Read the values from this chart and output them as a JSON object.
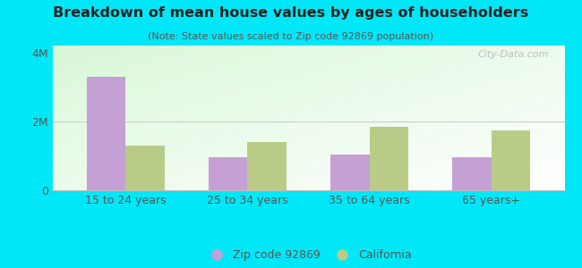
{
  "title": "Breakdown of mean house values by ages of householders",
  "subtitle": "(Note: State values scaled to Zip code 92869 population)",
  "categories": [
    "15 to 24 years",
    "25 to 34 years",
    "35 to 64 years",
    "65 years+"
  ],
  "zip_values": [
    3300000,
    950000,
    1050000,
    950000
  ],
  "ca_values": [
    1300000,
    1400000,
    1850000,
    1750000
  ],
  "zip_color": "#c4a0d4",
  "ca_color": "#b8cc88",
  "ylim": [
    0,
    4200000
  ],
  "yticks": [
    0,
    2000000,
    4000000
  ],
  "ytick_labels": [
    "0",
    "2M",
    "4M"
  ],
  "bg_outer": "#00e8f8",
  "legend_zip": "Zip code 92869",
  "legend_ca": "California",
  "bar_width": 0.32,
  "watermark": "City-Data.com"
}
